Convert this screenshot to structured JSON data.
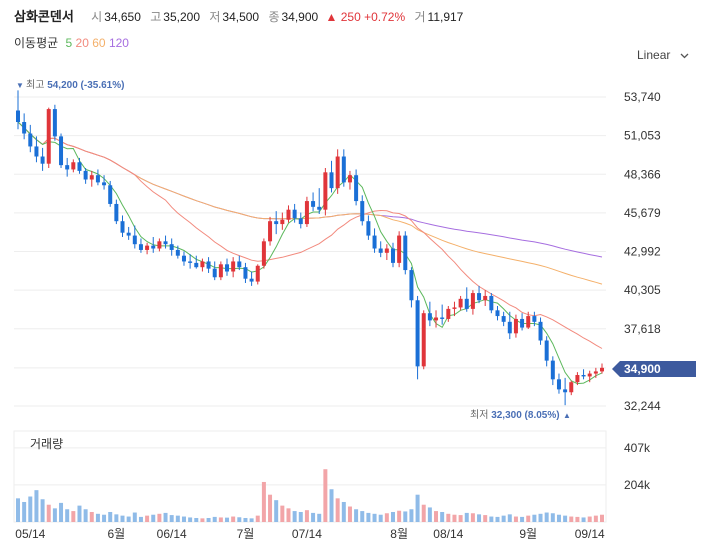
{
  "header": {
    "name": "삼화콘덴서",
    "open_label": "시",
    "open": "34,650",
    "high_label": "고",
    "high": "35,200",
    "low_label": "저",
    "low": "34,500",
    "close_label": "종",
    "close": "34,900",
    "change": "▲ 250",
    "change_pct": "+0.72%",
    "volume_label": "거",
    "volume": "11,917"
  },
  "ma_legend": {
    "title": "이동평균",
    "ma5": "5",
    "ma20": "20",
    "ma60": "60",
    "ma120": "120"
  },
  "scale_button": "Linear",
  "annotations": {
    "high_label": "최고",
    "high_value": "54,200 (-35.61%)",
    "low_label": "최저",
    "low_value": "32,300 (8.05%)",
    "last_price": "34,900"
  },
  "volume_panel": {
    "title": "거래량",
    "ticks": [
      "407k",
      "204k"
    ]
  },
  "colors": {
    "up": "#e0353a",
    "down": "#1a6fd6",
    "ma5": "#5cb85c",
    "ma20": "#f28a7e",
    "ma60": "#f4b06a",
    "ma120": "#a66ee0",
    "price_tag": "#3d5a9e"
  },
  "chart_data": {
    "type": "candlestick",
    "y_ticks": [
      "53,740",
      "51,053",
      "48,366",
      "45,679",
      "42,992",
      "40,305",
      "37,618",
      "34,900",
      "32,244"
    ],
    "x_ticks": [
      "05/14",
      "6월",
      "06/14",
      "7월",
      "07/14",
      "8월",
      "08/14",
      "9월",
      "09/14"
    ],
    "ylim": [
      32244,
      53740
    ],
    "ohlc": [
      [
        52800,
        54200,
        51500,
        52000
      ],
      [
        52000,
        52600,
        50800,
        51200
      ],
      [
        51200,
        51800,
        49900,
        50300
      ],
      [
        50300,
        51000,
        49200,
        49600
      ],
      [
        49600,
        50200,
        48600,
        49100
      ],
      [
        49100,
        53000,
        48800,
        52900
      ],
      [
        52900,
        53200,
        50700,
        51000
      ],
      [
        51000,
        51200,
        48800,
        49000
      ],
      [
        49000,
        49500,
        48200,
        48700
      ],
      [
        48700,
        49400,
        48500,
        49200
      ],
      [
        49200,
        49500,
        48400,
        48600
      ],
      [
        48600,
        48800,
        47700,
        48000
      ],
      [
        48000,
        48600,
        47500,
        48300
      ],
      [
        48300,
        48700,
        47600,
        47800
      ],
      [
        47800,
        48300,
        47300,
        47600
      ],
      [
        47600,
        47900,
        46100,
        46300
      ],
      [
        46300,
        46600,
        44900,
        45100
      ],
      [
        45100,
        45500,
        44000,
        44300
      ],
      [
        44300,
        44700,
        43800,
        44100
      ],
      [
        44100,
        44800,
        43200,
        43500
      ],
      [
        43500,
        43900,
        42900,
        43100
      ],
      [
        43100,
        43600,
        42800,
        43400
      ],
      [
        43400,
        44000,
        42900,
        43200
      ],
      [
        43200,
        43900,
        43000,
        43700
      ],
      [
        43700,
        44100,
        43200,
        43500
      ],
      [
        43500,
        43900,
        42700,
        43100
      ],
      [
        43100,
        43400,
        42500,
        42700
      ],
      [
        42700,
        43000,
        42000,
        42300
      ],
      [
        42300,
        42800,
        41800,
        42200
      ],
      [
        42200,
        42700,
        41800,
        41900
      ],
      [
        41900,
        42500,
        41600,
        42300
      ],
      [
        42300,
        42600,
        41500,
        41800
      ],
      [
        41800,
        42300,
        41000,
        41200
      ],
      [
        41200,
        42300,
        41000,
        42100
      ],
      [
        42100,
        42500,
        41300,
        41600
      ],
      [
        41600,
        42600,
        41200,
        42300
      ],
      [
        42300,
        42700,
        41700,
        41900
      ],
      [
        41900,
        42200,
        40800,
        41100
      ],
      [
        41100,
        41600,
        40600,
        40900
      ],
      [
        40900,
        42100,
        40700,
        42000
      ],
      [
        42000,
        43900,
        41800,
        43700
      ],
      [
        43700,
        45400,
        43400,
        45100
      ],
      [
        45100,
        45800,
        44200,
        44900
      ],
      [
        44900,
        45700,
        44500,
        45200
      ],
      [
        45200,
        46200,
        45000,
        45900
      ],
      [
        45900,
        46300,
        45000,
        45300
      ],
      [
        45300,
        45700,
        44600,
        44900
      ],
      [
        44900,
        46800,
        44700,
        46500
      ],
      [
        46500,
        47100,
        45800,
        46100
      ],
      [
        46100,
        47400,
        45600,
        45900
      ],
      [
        45900,
        48800,
        45500,
        48500
      ],
      [
        48500,
        49300,
        47100,
        47400
      ],
      [
        47400,
        50100,
        47000,
        49600
      ],
      [
        49600,
        50100,
        47500,
        47800
      ],
      [
        47800,
        48600,
        47300,
        48300
      ],
      [
        48300,
        48700,
        46200,
        46500
      ],
      [
        46500,
        46900,
        44800,
        45100
      ],
      [
        45100,
        45500,
        43800,
        44100
      ],
      [
        44100,
        44600,
        42900,
        43200
      ],
      [
        43200,
        43700,
        42600,
        42900
      ],
      [
        42900,
        43500,
        42400,
        43200
      ],
      [
        43200,
        43600,
        41900,
        42200
      ],
      [
        42200,
        44400,
        41900,
        44100
      ],
      [
        44100,
        44400,
        41400,
        41700
      ],
      [
        41700,
        41900,
        39100,
        39600
      ],
      [
        39600,
        39900,
        34100,
        35000
      ],
      [
        35000,
        38900,
        34800,
        38700
      ],
      [
        38700,
        39500,
        37800,
        38200
      ],
      [
        38200,
        38900,
        37700,
        38400
      ],
      [
        38400,
        39300,
        37900,
        38300
      ],
      [
        38300,
        39200,
        38100,
        39000
      ],
      [
        39000,
        39500,
        38500,
        39100
      ],
      [
        39100,
        39900,
        38900,
        39700
      ],
      [
        39700,
        40500,
        38800,
        39000
      ],
      [
        39000,
        40300,
        38600,
        40100
      ],
      [
        40100,
        40600,
        39400,
        39600
      ],
      [
        39600,
        40300,
        39200,
        39900
      ],
      [
        39900,
        40100,
        38700,
        38900
      ],
      [
        38900,
        39200,
        38200,
        38500
      ],
      [
        38500,
        38800,
        37800,
        38100
      ],
      [
        38100,
        38800,
        36900,
        37300
      ],
      [
        37300,
        38600,
        37000,
        38300
      ],
      [
        38300,
        38700,
        37500,
        37700
      ],
      [
        37700,
        38800,
        37600,
        38500
      ],
      [
        38500,
        38800,
        37800,
        38100
      ],
      [
        38100,
        38400,
        36500,
        36800
      ],
      [
        36800,
        37100,
        35000,
        35400
      ],
      [
        35400,
        35700,
        33700,
        34100
      ],
      [
        34100,
        34500,
        33100,
        33400
      ],
      [
        33400,
        34200,
        32300,
        33200
      ],
      [
        33200,
        34000,
        33000,
        33900
      ],
      [
        33900,
        34600,
        33700,
        34400
      ],
      [
        34400,
        34800,
        34100,
        34300
      ],
      [
        34300,
        34700,
        33900,
        34500
      ],
      [
        34500,
        34900,
        34200,
        34650
      ],
      [
        34650,
        35200,
        34500,
        34900
      ]
    ],
    "volume": [
      130,
      110,
      140,
      175,
      125,
      95,
      75,
      105,
      70,
      60,
      90,
      70,
      55,
      45,
      40,
      55,
      42,
      35,
      30,
      52,
      28,
      35,
      40,
      45,
      50,
      38,
      35,
      30,
      25,
      22,
      20,
      22,
      28,
      25,
      24,
      30,
      26,
      22,
      20,
      35,
      220,
      150,
      120,
      90,
      75,
      60,
      55,
      65,
      50,
      45,
      290,
      180,
      130,
      110,
      85,
      70,
      60,
      50,
      45,
      40,
      48,
      55,
      62,
      58,
      70,
      150,
      95,
      80,
      60,
      55,
      45,
      40,
      38,
      50,
      48,
      42,
      38,
      30,
      28,
      35,
      42,
      30,
      28,
      35,
      40,
      45,
      52,
      48,
      40,
      35,
      30,
      28,
      25,
      30,
      35,
      40
    ]
  }
}
